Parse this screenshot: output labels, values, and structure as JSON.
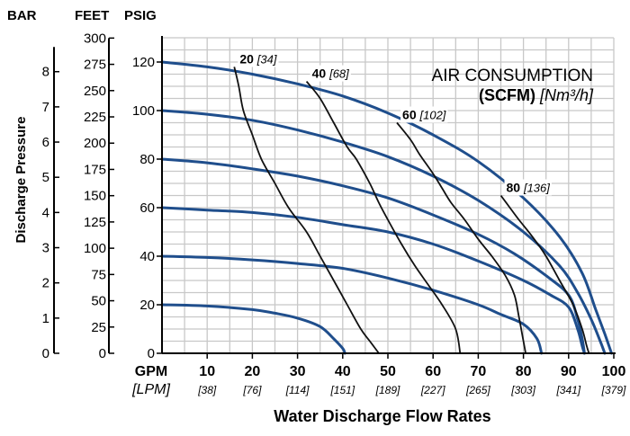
{
  "chart_data": {
    "type": "line",
    "title_line1": "AIR CONSUMPTION",
    "title_line2_bold": "(SCFM)",
    "title_line2_italic": "[Nm³/h]",
    "xlabel": "Water Discharge Flow Rates",
    "ylabel": "Discharge Pressure",
    "x_unit_primary": "GPM",
    "x_unit_secondary": "[LPM]",
    "x_ticks": [
      {
        "gpm": 10,
        "label": "10",
        "lpm": "[38]"
      },
      {
        "gpm": 20,
        "label": "20",
        "lpm": "[76]"
      },
      {
        "gpm": 30,
        "label": "30",
        "lpm": "[114]"
      },
      {
        "gpm": 40,
        "label": "40",
        "lpm": "[151]"
      },
      {
        "gpm": 50,
        "label": "50",
        "lpm": "[189]"
      },
      {
        "gpm": 60,
        "label": "60",
        "lpm": "[227]"
      },
      {
        "gpm": 70,
        "label": "70",
        "lpm": "[265]"
      },
      {
        "gpm": 80,
        "label": "80",
        "lpm": "[303]"
      },
      {
        "gpm": 90,
        "label": "90",
        "lpm": "[341]"
      },
      {
        "gpm": 100,
        "label": "100",
        "lpm": "[379]"
      }
    ],
    "xlim": [
      0,
      100
    ],
    "axis_headers": {
      "bar": "BAR",
      "feet": "FEET",
      "psig": "PSIG"
    },
    "psig_ticks": [
      0,
      20,
      40,
      60,
      80,
      100,
      120
    ],
    "feet_ticks": [
      0,
      25,
      50,
      75,
      100,
      125,
      150,
      175,
      200,
      225,
      250,
      275,
      300
    ],
    "bar_ticks": [
      0,
      1,
      2,
      3,
      4,
      5,
      6,
      7,
      8
    ],
    "ylim_psig": [
      0,
      130
    ],
    "grid": true,
    "colors": {
      "pressure_curve": "#1f4e8c",
      "air_curve": "#111111",
      "grid": "#c8c8c8",
      "axis": "#000000"
    },
    "pressure_curves": [
      {
        "psig": 120,
        "points": [
          [
            0,
            120
          ],
          [
            10,
            118
          ],
          [
            20,
            115
          ],
          [
            30,
            111
          ],
          [
            40,
            106
          ],
          [
            50,
            99
          ],
          [
            60,
            90
          ],
          [
            70,
            79
          ],
          [
            80,
            64
          ],
          [
            88,
            48
          ],
          [
            93,
            33
          ],
          [
            96,
            18
          ],
          [
            98,
            8
          ],
          [
            99.5,
            0
          ]
        ]
      },
      {
        "psig": 100,
        "points": [
          [
            0,
            100
          ],
          [
            10,
            98.5
          ],
          [
            20,
            96
          ],
          [
            30,
            92
          ],
          [
            40,
            87
          ],
          [
            50,
            81
          ],
          [
            60,
            73
          ],
          [
            70,
            63
          ],
          [
            80,
            50
          ],
          [
            88,
            36
          ],
          [
            92,
            25
          ],
          [
            95,
            14
          ],
          [
            97,
            5
          ],
          [
            98,
            0
          ]
        ]
      },
      {
        "psig": 80,
        "points": [
          [
            0,
            80
          ],
          [
            10,
            78.5
          ],
          [
            20,
            76
          ],
          [
            30,
            73
          ],
          [
            40,
            69
          ],
          [
            50,
            64
          ],
          [
            60,
            57
          ],
          [
            70,
            49
          ],
          [
            78,
            41
          ],
          [
            85,
            32
          ],
          [
            90,
            24
          ],
          [
            92,
            14
          ],
          [
            93,
            6
          ],
          [
            93.5,
            0
          ]
        ]
      },
      {
        "psig": 60,
        "points": [
          [
            0,
            60
          ],
          [
            10,
            59
          ],
          [
            20,
            58
          ],
          [
            30,
            56
          ],
          [
            40,
            53
          ],
          [
            50,
            50
          ],
          [
            60,
            45
          ],
          [
            70,
            38
          ],
          [
            80,
            30
          ],
          [
            86,
            24
          ],
          [
            90,
            19
          ],
          [
            92,
            10
          ],
          [
            93,
            3
          ],
          [
            93.5,
            0
          ]
        ]
      },
      {
        "psig": 40,
        "points": [
          [
            0,
            40
          ],
          [
            10,
            39.5
          ],
          [
            20,
            38.5
          ],
          [
            30,
            37
          ],
          [
            40,
            35
          ],
          [
            50,
            31
          ],
          [
            60,
            26
          ],
          [
            70,
            20
          ],
          [
            75,
            16
          ],
          [
            80,
            12
          ],
          [
            83,
            6
          ],
          [
            84,
            0
          ]
        ]
      },
      {
        "psig": 20,
        "points": [
          [
            0,
            20
          ],
          [
            10,
            19.5
          ],
          [
            20,
            18
          ],
          [
            25,
            16.5
          ],
          [
            30,
            14.5
          ],
          [
            35,
            11
          ],
          [
            38,
            6
          ],
          [
            40,
            2
          ],
          [
            40.5,
            0
          ]
        ]
      }
    ],
    "air_curves": [
      {
        "label_num": "20",
        "label_metric": "[34]",
        "points": [
          [
            16,
            118
          ],
          [
            17,
            110
          ],
          [
            18,
            100
          ],
          [
            20,
            90
          ],
          [
            22,
            80
          ],
          [
            25,
            70
          ],
          [
            28,
            60
          ],
          [
            32,
            50
          ],
          [
            35,
            40
          ],
          [
            38,
            30
          ],
          [
            41,
            20
          ],
          [
            44,
            10
          ],
          [
            46,
            5
          ],
          [
            48,
            0
          ]
        ]
      },
      {
        "label_num": "40",
        "label_metric": "[68]",
        "points": [
          [
            32,
            112
          ],
          [
            35,
            105
          ],
          [
            38,
            95
          ],
          [
            41,
            85
          ],
          [
            43,
            80
          ],
          [
            46,
            70
          ],
          [
            48,
            62
          ],
          [
            50,
            55
          ],
          [
            53,
            45
          ],
          [
            56,
            36
          ],
          [
            59,
            28
          ],
          [
            62,
            20
          ],
          [
            65,
            10
          ],
          [
            66,
            0
          ]
        ]
      },
      {
        "label_num": "60",
        "label_metric": "[102]",
        "points": [
          [
            52,
            95
          ],
          [
            55,
            88
          ],
          [
            57,
            82
          ],
          [
            60,
            74
          ],
          [
            62,
            68
          ],
          [
            64,
            62
          ],
          [
            67,
            55
          ],
          [
            70,
            47
          ],
          [
            73,
            40
          ],
          [
            76,
            32
          ],
          [
            78,
            24
          ],
          [
            79,
            15
          ],
          [
            80,
            5
          ],
          [
            80.5,
            0
          ]
        ]
      },
      {
        "label_num": "80",
        "label_metric": "[136]",
        "points": [
          [
            75,
            65
          ],
          [
            77,
            60
          ],
          [
            79,
            55
          ],
          [
            82,
            48
          ],
          [
            85,
            40
          ],
          [
            88,
            30
          ],
          [
            91,
            20
          ],
          [
            93,
            10
          ],
          [
            94,
            3
          ],
          [
            94.5,
            0
          ]
        ]
      }
    ]
  }
}
